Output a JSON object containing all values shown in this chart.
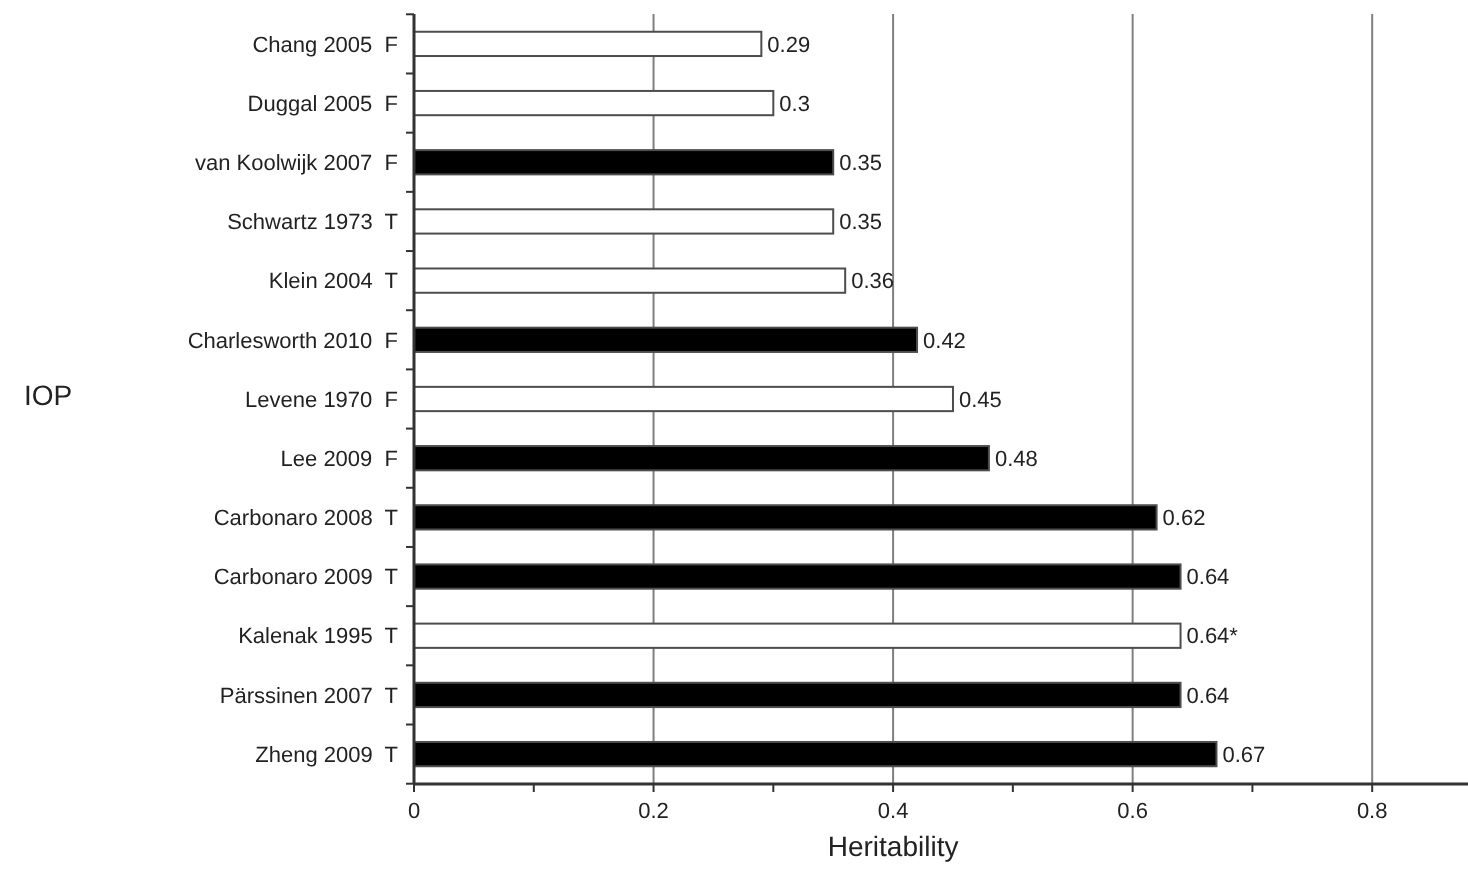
{
  "chart_data": {
    "type": "bar",
    "orientation": "horizontal",
    "ylabel": "IOP",
    "xlabel": "Heritability",
    "categories": [
      "Chang 2005  F",
      "Duggal 2005  F",
      "van Koolwijk 2007  F",
      "Schwartz 1973  T",
      "Klein 2004  T",
      "Charlesworth 2010  F",
      "Levene 1970  F",
      "Lee 2009  F",
      "Carbonaro 2008  T",
      "Carbonaro 2009  T",
      "Kalenak 1995  T",
      "Pärssinen 2007  T",
      "Zheng 2009  T"
    ],
    "values": [
      0.29,
      0.3,
      0.35,
      0.35,
      0.36,
      0.42,
      0.45,
      0.48,
      0.62,
      0.64,
      0.64,
      0.64,
      0.67
    ],
    "value_labels": [
      "0.29",
      "0.3",
      "0.35",
      "0.35",
      "0.36",
      "0.42",
      "0.45",
      "0.48",
      "0.62",
      "0.64",
      "0.64*",
      "0.64",
      "0.67"
    ],
    "colors": [
      "#ffffff",
      "#ffffff",
      "#000000",
      "#ffffff",
      "#ffffff",
      "#000000",
      "#ffffff",
      "#000000",
      "#000000",
      "#000000",
      "#ffffff",
      "#000000",
      "#000000"
    ],
    "xlim": [
      0,
      0.88
    ],
    "xticks": [
      0,
      {
        "value": 0.1,
        "label": null
      },
      0.2,
      {
        "value": 0.3,
        "label": null
      },
      0.4,
      {
        "value": 0.5,
        "label": null
      },
      0.6,
      {
        "value": 0.7,
        "label": null
      },
      0.8
    ],
    "grid": "x"
  }
}
